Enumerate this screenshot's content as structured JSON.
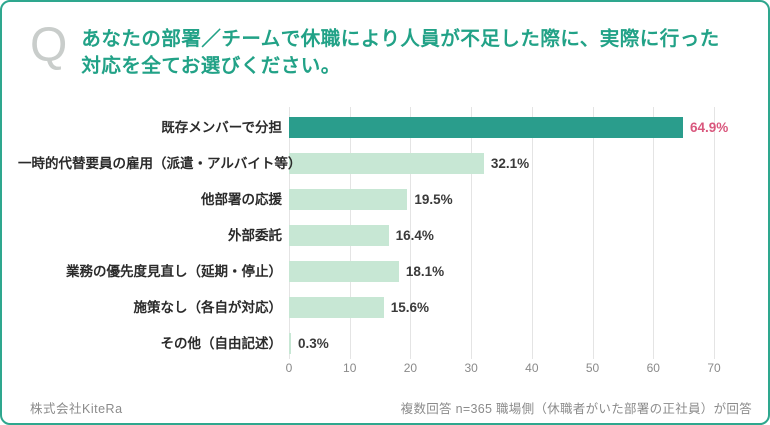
{
  "header": {
    "q_mark": "Q",
    "title_line1": "あなたの部署／チームで休職により人員が不足した際に、実際に行った",
    "title_line2": "対応を全てお選びください。"
  },
  "chart_data": {
    "type": "bar",
    "orientation": "horizontal",
    "title": "あなたの部署／チームで休職により人員が不足した際に、実際に行った対応を全てお選びください。",
    "categories": [
      "既存メンバーで分担",
      "一時的代替要員の雇用（派遣・アルバイト等）",
      "他部署の応援",
      "外部委託",
      "業務の優先度見直し（延期・停止）",
      "施策なし（各自が対応）",
      "その他（自由記述）"
    ],
    "values": [
      64.9,
      32.1,
      19.5,
      16.4,
      18.1,
      15.6,
      0.3
    ],
    "value_labels": [
      "64.9%",
      "32.1%",
      "19.5%",
      "16.4%",
      "18.1%",
      "15.6%",
      "0.3%"
    ],
    "x_ticks": [
      0,
      10,
      20,
      30,
      40,
      50,
      60,
      70
    ],
    "xlim": [
      0,
      70
    ],
    "grid": true,
    "legend": false,
    "highlight_index": 0,
    "colors": {
      "bar": "#c7e7d4",
      "bar_highlight": "#2a9d8c",
      "value_label": "#3a3a3a",
      "value_label_highlight": "#d9577d",
      "title": "#22a287",
      "border": "#2ea78e",
      "gridline": "#e4e4e4"
    }
  },
  "footer": {
    "company": "株式会社KiteRa",
    "note": "複数回答 n=365 職場側（休職者がいた部署の正社員）が回答"
  }
}
